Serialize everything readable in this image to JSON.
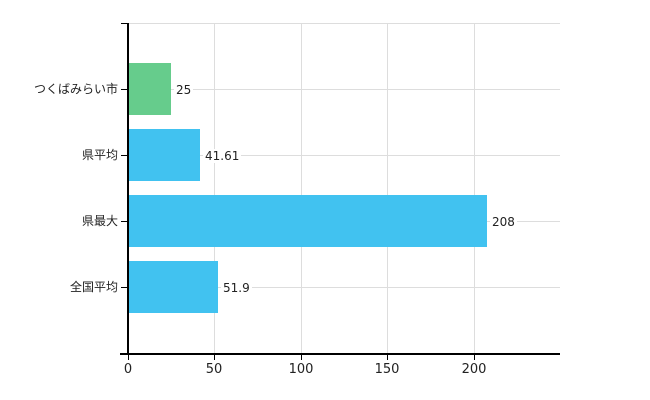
{
  "chart_data": {
    "type": "bar",
    "orientation": "horizontal",
    "title": "",
    "xlabel": "",
    "ylabel": "",
    "categories": [
      "つくばみらい市",
      "県平均",
      "県最大",
      "全国平均"
    ],
    "values": [
      25,
      41.61,
      208,
      51.9
    ],
    "value_labels": [
      "25",
      "41.61",
      "208",
      "51.9"
    ],
    "bar_colors": [
      "#66CC8C",
      "#41C2F0",
      "#41C2F0",
      "#41C2F0"
    ],
    "x_ticks": [
      0,
      50,
      100,
      150,
      200
    ],
    "x_tick_labels": [
      "0",
      "50",
      "100",
      "150",
      "200"
    ],
    "xlim": [
      0,
      250
    ],
    "grid": true,
    "legend": "none",
    "gridline_color": "#DDDDDD",
    "axis_color": "#000000",
    "text_color": "#222222",
    "background_color": "#FFFFFF"
  }
}
